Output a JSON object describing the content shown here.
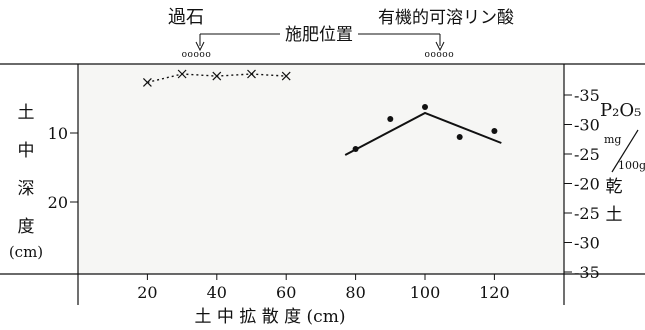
{
  "chart_data": {
    "type": "scatter",
    "title": "",
    "header": {
      "left_label": "過石",
      "center_label": "施肥位置",
      "right_label": "有機的可溶リン酸",
      "fertilizer_marks": [
        {
          "x": 35,
          "symbol": "ooooo"
        },
        {
          "x": 105,
          "symbol": "ooooo"
        }
      ]
    },
    "xlabel": "土 中 拡 散 度 (cm)",
    "xlim": [
      0,
      140
    ],
    "xticks": [
      "20",
      "40",
      "60",
      "80",
      "100",
      "120"
    ],
    "xtick_values": [
      20,
      40,
      60,
      80,
      100,
      120
    ],
    "left_axis": {
      "label_chars": [
        "土",
        "中",
        "深",
        "度"
      ],
      "unit": "(cm)",
      "ticks": [
        "10",
        "20"
      ],
      "tick_values": [
        10,
        20
      ],
      "range": [
        0,
        30
      ]
    },
    "right_axis": {
      "label": "P₂O₅",
      "unit_top": "mg",
      "unit_bottom": "100g",
      "label_chars": [
        "乾",
        "土"
      ],
      "ticks": [
        "35",
        "30",
        "25",
        "20",
        "25",
        "30",
        "35"
      ],
      "range": [
        0,
        30
      ]
    },
    "series": [
      {
        "marker": "x",
        "line": "dotted",
        "points": [
          {
            "x": 20,
            "y": 38
          },
          {
            "x": 30,
            "y": 40
          },
          {
            "x": 40,
            "y": 39.5
          },
          {
            "x": 50,
            "y": 40
          },
          {
            "x": 60,
            "y": 39.5
          }
        ]
      },
      {
        "marker": "dot",
        "line": "none",
        "points": [
          {
            "x": 80,
            "y": 26
          },
          {
            "x": 90,
            "y": 31
          },
          {
            "x": 100,
            "y": 33
          },
          {
            "x": 110,
            "y": 28
          },
          {
            "x": 120,
            "y": 29
          }
        ]
      },
      {
        "marker": "none",
        "line": "solid",
        "points": [
          {
            "x": 77,
            "y": 25
          },
          {
            "x": 100,
            "y": 32
          },
          {
            "x": 122,
            "y": 27
          }
        ]
      }
    ],
    "grid": false
  }
}
